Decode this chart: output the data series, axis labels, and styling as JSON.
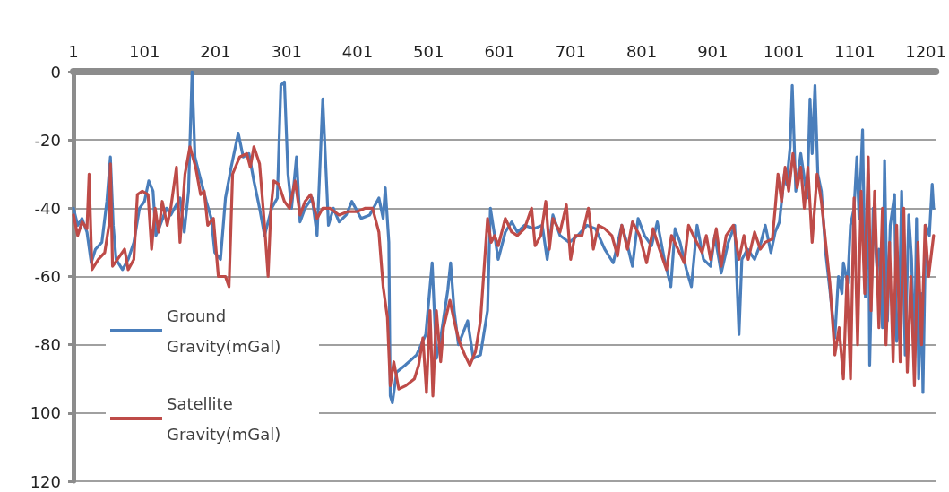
{
  "chart_data": {
    "type": "line",
    "xlim": [
      1,
      1215
    ],
    "xticks": [
      1,
      101,
      201,
      301,
      401,
      501,
      601,
      701,
      801,
      901,
      1001,
      1101,
      1201
    ],
    "ylim": [
      -120,
      0
    ],
    "yticks": [
      0,
      -20,
      -40,
      -60,
      -80,
      {
        "value": -100,
        "label": "100"
      },
      {
        "value": -120,
        "label": "120"
      }
    ],
    "grid": "y",
    "legend": "left",
    "marker": "none",
    "line_style": "solid",
    "series": [
      {
        "name": "Ground Gravity(mGal)",
        "color": "#4a7ebb",
        "x": [
          1,
          7,
          13,
          20,
          26,
          32,
          41,
          48,
          53,
          57,
          61,
          70,
          78,
          86,
          94,
          101,
          107,
          113,
          117,
          123,
          132,
          138,
          151,
          157,
          163,
          168,
          172,
          178,
          188,
          195,
          200,
          208,
          215,
          223,
          233,
          240,
          248,
          255,
          263,
          270,
          280,
          288,
          293,
          298,
          303,
          308,
          315,
          320,
          327,
          337,
          344,
          352,
          360,
          367,
          375,
          385,
          393,
          406,
          418,
          431,
          437,
          440,
          445,
          447,
          450,
          456,
          468,
          484,
          497,
          506,
          512,
          518,
          528,
          532,
          537,
          543,
          556,
          564,
          574,
          584,
          588,
          594,
          599,
          609,
          618,
          626,
          636,
          649,
          661,
          668,
          676,
          686,
          699,
          711,
          724,
          736,
          749,
          761,
          773,
          780,
          788,
          796,
          805,
          815,
          823,
          833,
          842,
          848,
          855,
          864,
          871,
          879,
          888,
          898,
          904,
          913,
          923,
          932,
          938,
          942,
          950,
          960,
          969,
          975,
          983,
          989,
          995,
          1002,
          1005,
          1010,
          1013,
          1018,
          1025,
          1034,
          1038,
          1041,
          1045,
          1049,
          1054,
          1060,
          1066,
          1073,
          1078,
          1083,
          1085,
          1091,
          1095,
          1100,
          1104,
          1107,
          1112,
          1116,
          1120,
          1122,
          1127,
          1132,
          1135,
          1140,
          1143,
          1147,
          1151,
          1157,
          1160,
          1163,
          1167,
          1172,
          1177,
          1181,
          1185,
          1188,
          1191,
          1195,
          1197,
          1201,
          1206,
          1210,
          1212
        ],
        "values": [
          -40,
          -45,
          -43,
          -47,
          -56,
          -52,
          -50,
          -38,
          -25,
          -45,
          -55,
          -58,
          -55,
          -50,
          -40,
          -38,
          -32,
          -35,
          -48,
          -45,
          -40,
          -42,
          -37,
          -47,
          -35,
          0,
          -25,
          -30,
          -38,
          -43,
          -53,
          -55,
          -37,
          -28,
          -18,
          -25,
          -24,
          -32,
          -40,
          -48,
          -40,
          -37,
          -4,
          -3,
          -30,
          -40,
          -25,
          -44,
          -40,
          -37,
          -48,
          -8,
          -45,
          -40,
          -44,
          -42,
          -38,
          -43,
          -42,
          -37,
          -43,
          -34,
          -50,
          -95,
          -97,
          -88,
          -86,
          -83,
          -77,
          -56,
          -84,
          -78,
          -64,
          -56,
          -70,
          -80,
          -73,
          -84,
          -83,
          -70,
          -40,
          -48,
          -55,
          -47,
          -44,
          -47,
          -45,
          -46,
          -45,
          -55,
          -42,
          -48,
          -50,
          -48,
          -45,
          -46,
          -52,
          -56,
          -45,
          -50,
          -57,
          -43,
          -48,
          -51,
          -44,
          -55,
          -63,
          -46,
          -50,
          -58,
          -63,
          -45,
          -55,
          -57,
          -48,
          -59,
          -50,
          -45,
          -77,
          -55,
          -52,
          -55,
          -50,
          -45,
          -53,
          -47,
          -44,
          -30,
          -33,
          -22,
          -4,
          -35,
          -24,
          -37,
          -8,
          -24,
          -4,
          -30,
          -35,
          -53,
          -64,
          -78,
          -60,
          -65,
          -56,
          -62,
          -45,
          -40,
          -25,
          -43,
          -17,
          -66,
          -30,
          -86,
          -40,
          -57,
          -52,
          -75,
          -26,
          -73,
          -45,
          -36,
          -79,
          -76,
          -35,
          -83,
          -42,
          -55,
          -85,
          -43,
          -90,
          -65,
          -94,
          -45,
          -48,
          -33,
          -40
        ]
      },
      {
        "name": "Satellite Gravity(mGal)",
        "color": "#be4b48",
        "x": [
          1,
          7,
          13,
          20,
          23,
          27,
          36,
          45,
          51,
          53,
          56,
          63,
          73,
          78,
          86,
          91,
          98,
          106,
          111,
          116,
          121,
          126,
          133,
          138,
          146,
          151,
          158,
          165,
          173,
          180,
          185,
          190,
          198,
          205,
          215,
          220,
          225,
          235,
          245,
          250,
          255,
          263,
          270,
          275,
          279,
          283,
          290,
          298,
          305,
          313,
          320,
          327,
          335,
          344,
          352,
          362,
          375,
          387,
          400,
          412,
          422,
          431,
          437,
          443,
          447,
          452,
          459,
          469,
          481,
          487,
          493,
          498,
          503,
          507,
          512,
          518,
          522,
          531,
          537,
          544,
          552,
          559,
          567,
          574,
          580,
          584,
          589,
          594,
          599,
          609,
          618,
          626,
          636,
          646,
          651,
          659,
          666,
          671,
          676,
          686,
          695,
          701,
          707,
          717,
          726,
          733,
          740,
          749,
          759,
          767,
          773,
          781,
          788,
          798,
          808,
          817,
          826,
          836,
          843,
          852,
          861,
          867,
          876,
          886,
          892,
          898,
          906,
          913,
          920,
          930,
          938,
          945,
          951,
          960,
          968,
          975,
          985,
          989,
          993,
          998,
          1003,
          1008,
          1014,
          1020,
          1025,
          1030,
          1035,
          1041,
          1048,
          1054,
          1060,
          1066,
          1073,
          1079,
          1085,
          1090,
          1095,
          1100,
          1105,
          1110,
          1115,
          1120,
          1124,
          1129,
          1135,
          1140,
          1145,
          1150,
          1155,
          1160,
          1165,
          1170,
          1175,
          1180,
          1185,
          1190,
          1195,
          1200,
          1205,
          1212
        ],
        "values": [
          -42,
          -48,
          -44,
          -46,
          -30,
          -58,
          -55,
          -53,
          -45,
          -27,
          -57,
          -55,
          -52,
          -58,
          -55,
          -36,
          -35,
          -36,
          -52,
          -40,
          -47,
          -38,
          -45,
          -40,
          -28,
          -50,
          -30,
          -22,
          -28,
          -36,
          -35,
          -45,
          -43,
          -60,
          -60,
          -63,
          -30,
          -25,
          -24,
          -28,
          -22,
          -27,
          -45,
          -60,
          -40,
          -32,
          -33,
          -38,
          -40,
          -32,
          -42,
          -38,
          -36,
          -43,
          -40,
          -40,
          -42,
          -41,
          -41,
          -40,
          -40,
          -47,
          -63,
          -72,
          -92,
          -85,
          -93,
          -92,
          -90,
          -86,
          -78,
          -94,
          -70,
          -95,
          -70,
          -85,
          -75,
          -67,
          -73,
          -79,
          -83,
          -86,
          -82,
          -73,
          -55,
          -43,
          -50,
          -48,
          -51,
          -43,
          -47,
          -48,
          -46,
          -40,
          -51,
          -48,
          -38,
          -52,
          -43,
          -47,
          -39,
          -55,
          -48,
          -48,
          -40,
          -52,
          -45,
          -46,
          -48,
          -54,
          -45,
          -52,
          -44,
          -48,
          -56,
          -46,
          -52,
          -58,
          -48,
          -52,
          -56,
          -45,
          -49,
          -53,
          -48,
          -55,
          -46,
          -57,
          -48,
          -45,
          -55,
          -48,
          -55,
          -47,
          -52,
          -50,
          -49,
          -40,
          -30,
          -38,
          -28,
          -35,
          -24,
          -34,
          -28,
          -40,
          -28,
          -50,
          -30,
          -38,
          -50,
          -62,
          -83,
          -75,
          -90,
          -60,
          -90,
          -37,
          -80,
          -35,
          -65,
          -25,
          -70,
          -35,
          -75,
          -40,
          -80,
          -50,
          -85,
          -45,
          -85,
          -40,
          -88,
          -60,
          -92,
          -50,
          -80,
          -45,
          -60,
          -48
        ]
      }
    ]
  }
}
